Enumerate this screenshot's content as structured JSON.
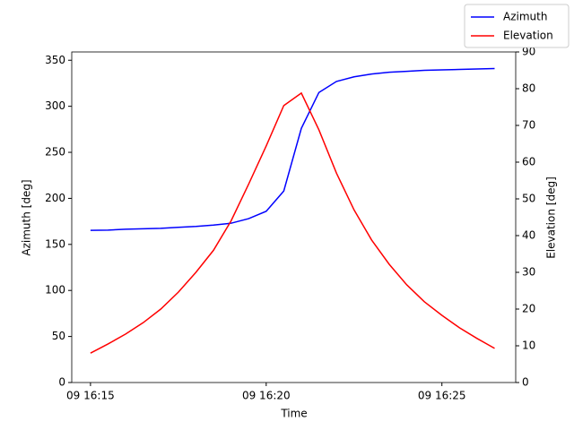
{
  "chart_data": {
    "type": "line",
    "x_label": "Time",
    "y_label": "Azimuth [deg]",
    "y2_label": "Elevation [deg]",
    "x": [
      "09 16:15:00",
      "09 16:15:30",
      "09 16:16:00",
      "09 16:16:30",
      "09 16:17:00",
      "09 16:17:30",
      "09 16:18:00",
      "09 16:18:30",
      "09 16:19:00",
      "09 16:19:30",
      "09 16:20:00",
      "09 16:20:30",
      "09 16:21:00",
      "09 16:21:30",
      "09 16:22:00",
      "09 16:22:30",
      "09 16:23:00",
      "09 16:23:30",
      "09 16:24:00",
      "09 16:24:30",
      "09 16:25:00",
      "09 16:25:30",
      "09 16:26:00",
      "09 16:26:30"
    ],
    "series": [
      {
        "name": "Azimuth",
        "color": "#0000ff",
        "axis": "y",
        "values": [
          165.3,
          165.5,
          166.5,
          167,
          167.5,
          168.5,
          169.5,
          171,
          173,
          178,
          186,
          208,
          276,
          315,
          327,
          332,
          335,
          337,
          338,
          339,
          339.5,
          340,
          340.5,
          341
        ]
      },
      {
        "name": "Elevation",
        "color": "#ff0000",
        "axis": "y2",
        "values": [
          8,
          10.5,
          13.2,
          16.3,
          20,
          24.6,
          30,
          36,
          44,
          54,
          64.4,
          75.4,
          78.8,
          68.8,
          57,
          47,
          38.8,
          32.2,
          26.6,
          22,
          18.3,
          14.9,
          12,
          9.3
        ]
      }
    ],
    "xlim": [
      "09 16:14:28",
      "09 16:27:06"
    ],
    "xticks": [
      "09 16:15",
      "09 16:20",
      "09 16:25"
    ],
    "ylim": [
      0,
      359
    ],
    "yticks": [
      0,
      50,
      100,
      150,
      200,
      250,
      300,
      350
    ],
    "y2lim": [
      0,
      90
    ],
    "y2ticks": [
      0,
      10,
      20,
      30,
      40,
      50,
      60,
      70,
      80,
      90
    ],
    "grid": false,
    "legend": "upper right"
  }
}
